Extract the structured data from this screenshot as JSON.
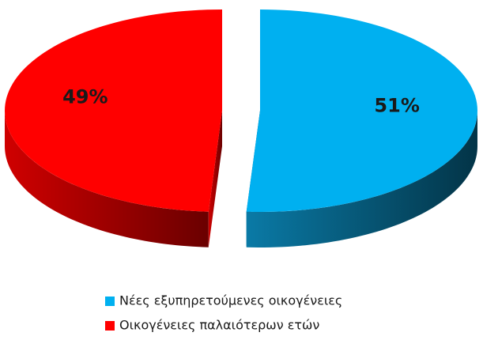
{
  "chart_data": {
    "type": "pie",
    "categories": [
      "Νέες εξυπηρετούμενες οικογένειες",
      "Οικογένειες παλαιότερων ετών"
    ],
    "values": [
      51,
      49
    ],
    "value_labels": [
      "51%",
      "49%"
    ],
    "colors": [
      "#00b0f0",
      "#ff0000"
    ],
    "legend": "bottom"
  }
}
